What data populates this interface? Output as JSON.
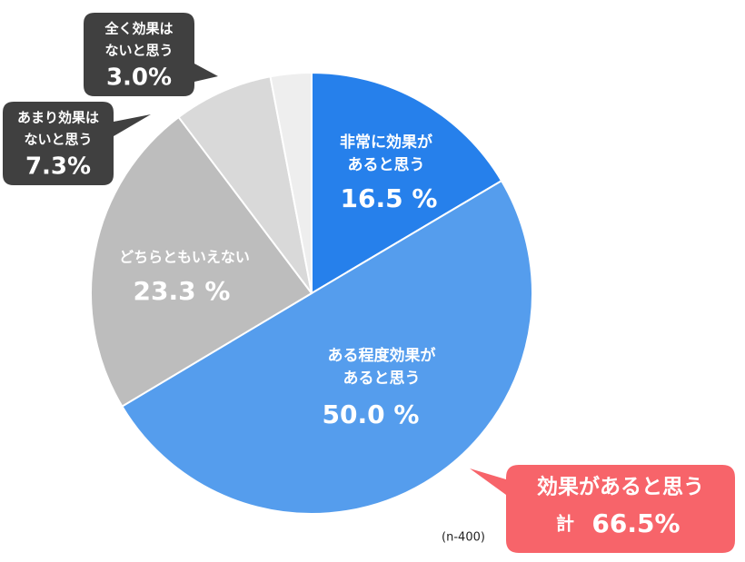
{
  "chart_data": {
    "type": "pie",
    "categories": [
      [
        "非常に効果が",
        "あると思う"
      ],
      [
        "ある程度効果が",
        "あると思う"
      ],
      [
        "どちらともいえない"
      ],
      [
        "あまり効果は",
        "ないと思う"
      ],
      [
        "全く効果は",
        "ないと思う"
      ]
    ],
    "values": [
      16.5,
      50.0,
      23.3,
      7.3,
      3.0
    ],
    "value_labels": [
      "16.5 %",
      "50.0 %",
      "23.3 %",
      "7.3%",
      "3.0%"
    ],
    "colors": [
      "#2680eb",
      "#559ded",
      "#bdbdbd",
      "#d9d9d9",
      "#eeeeee"
    ],
    "annotation": {
      "title": "効果があると思う",
      "prefix": "計",
      "total": "66.5%"
    },
    "note": "(n-400)"
  }
}
